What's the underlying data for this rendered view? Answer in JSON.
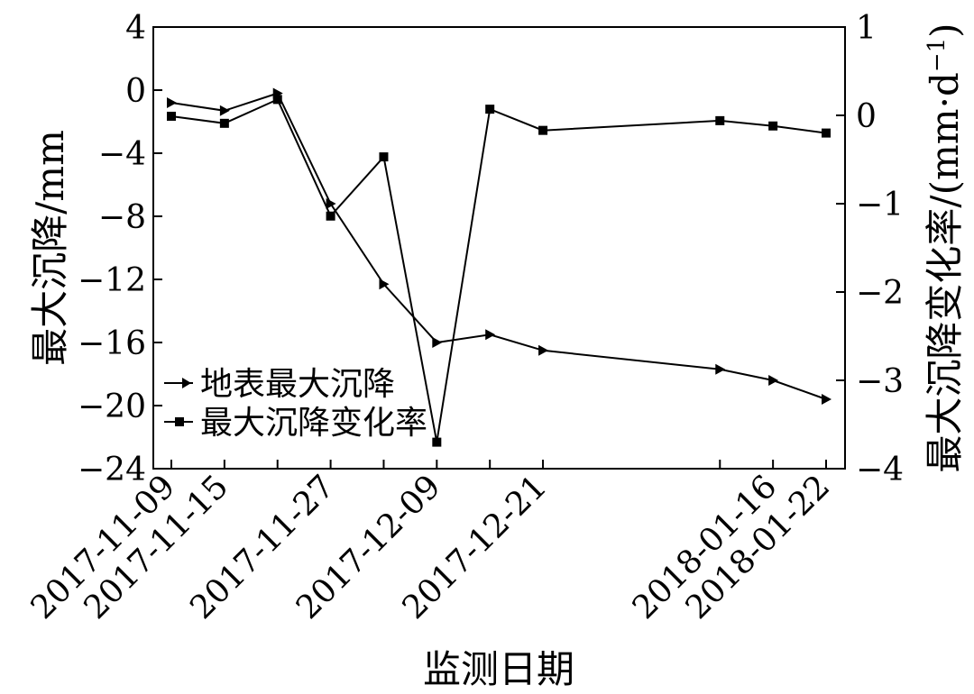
{
  "chart_data": {
    "type": "line",
    "xlabel": "监测日期",
    "x_tick_labels": [
      "2017-11-09",
      "2017-11-15",
      "2017-11-27",
      "2017-12-09",
      "2017-12-21",
      "2018-01-16",
      "2018-01-22"
    ],
    "x_points": [
      "2017-11-09",
      "2017-11-15",
      "2017-11-21",
      "2017-11-27",
      "2017-12-03",
      "2017-12-09",
      "2017-12-15",
      "2017-12-21",
      "2018-01-10",
      "2018-01-16",
      "2018-01-22"
    ],
    "y_left": {
      "label": "最大沉降/mm",
      "ylim": [
        -24,
        4
      ],
      "ticks": [
        4,
        0,
        -4,
        -8,
        -12,
        -16,
        -20,
        -24
      ]
    },
    "y_right": {
      "label": "最大沉降变化率/(mm·d",
      "label_sup": "−1",
      "label_tail": ")",
      "ylim": [
        -4,
        1
      ],
      "ticks": [
        1,
        0,
        -1,
        -2,
        -3,
        -4
      ]
    },
    "series": [
      {
        "name": "地表最大沉降",
        "axis": "left",
        "marker": "triangle-right",
        "values": [
          -0.8,
          -1.3,
          -0.2,
          -7.2,
          -12.3,
          -16.0,
          -15.5,
          -16.5,
          -17.7,
          -18.4,
          -19.6
        ]
      },
      {
        "name": "最大沉降变化率",
        "axis": "right",
        "marker": "square",
        "values": [
          -0.01,
          -0.09,
          0.18,
          -1.14,
          -0.47,
          -3.7,
          0.07,
          -0.17,
          -0.06,
          -0.12,
          -0.2
        ]
      }
    ],
    "legend_position": "bottom-left",
    "grid": false
  }
}
